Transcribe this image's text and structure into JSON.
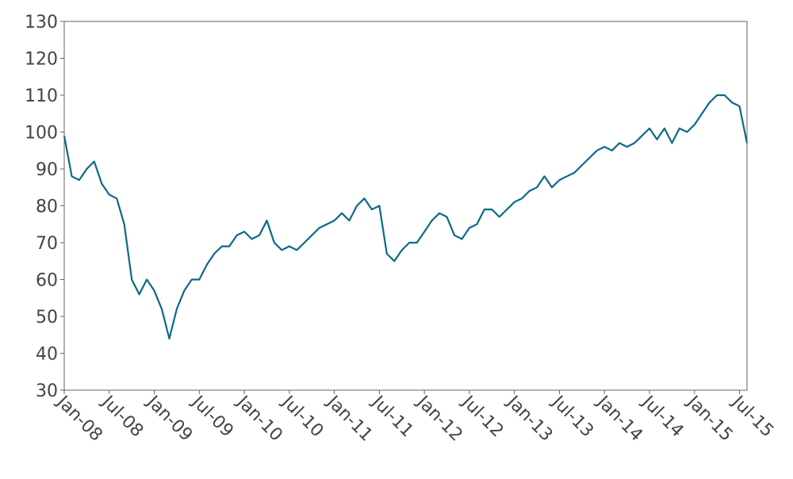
{
  "chart_data": {
    "type": "line",
    "color": "#0b6a86",
    "x": [
      "2008-01",
      "2008-02",
      "2008-03",
      "2008-04",
      "2008-05",
      "2008-06",
      "2008-07",
      "2008-08",
      "2008-09",
      "2008-10",
      "2008-11",
      "2008-12",
      "2009-01",
      "2009-02",
      "2009-03",
      "2009-04",
      "2009-05",
      "2009-06",
      "2009-07",
      "2009-08",
      "2009-09",
      "2009-10",
      "2009-11",
      "2009-12",
      "2010-01",
      "2010-02",
      "2010-03",
      "2010-04",
      "2010-05",
      "2010-06",
      "2010-07",
      "2010-08",
      "2010-09",
      "2010-10",
      "2010-11",
      "2010-12",
      "2011-01",
      "2011-02",
      "2011-03",
      "2011-04",
      "2011-05",
      "2011-06",
      "2011-07",
      "2011-08",
      "2011-09",
      "2011-10",
      "2011-11",
      "2011-12",
      "2012-01",
      "2012-02",
      "2012-03",
      "2012-04",
      "2012-05",
      "2012-06",
      "2012-07",
      "2012-08",
      "2012-09",
      "2012-10",
      "2012-11",
      "2012-12",
      "2013-01",
      "2013-02",
      "2013-03",
      "2013-04",
      "2013-05",
      "2013-06",
      "2013-07",
      "2013-08",
      "2013-09",
      "2013-10",
      "2013-11",
      "2013-12",
      "2014-01",
      "2014-02",
      "2014-03",
      "2014-04",
      "2014-05",
      "2014-06",
      "2014-07",
      "2014-08",
      "2014-09",
      "2014-10",
      "2014-11",
      "2014-12",
      "2015-01",
      "2015-02",
      "2015-03",
      "2015-04",
      "2015-05",
      "2015-06",
      "2015-07",
      "2015-08"
    ],
    "values": [
      99,
      88,
      87,
      90,
      92,
      86,
      83,
      82,
      75,
      60,
      56,
      60,
      57,
      52,
      44,
      52,
      57,
      60,
      60,
      64,
      67,
      69,
      69,
      72,
      73,
      71,
      72,
      76,
      70,
      68,
      69,
      68,
      70,
      72,
      74,
      75,
      76,
      78,
      76,
      80,
      82,
      79,
      80,
      67,
      65,
      68,
      70,
      70,
      73,
      76,
      78,
      77,
      72,
      71,
      74,
      75,
      79,
      79,
      77,
      79,
      81,
      82,
      84,
      85,
      88,
      85,
      87,
      88,
      89,
      91,
      93,
      95,
      96,
      95,
      97,
      96,
      97,
      99,
      101,
      98,
      101,
      97,
      101,
      100,
      102,
      105,
      108,
      110,
      110,
      108,
      107,
      97
    ],
    "xlim": [
      "2008-01",
      "2015-08"
    ],
    "xticks": [
      {
        "value": "2008-01",
        "label": "Jan-08"
      },
      {
        "value": "2008-07",
        "label": "Jul-08"
      },
      {
        "value": "2009-01",
        "label": "Jan-09"
      },
      {
        "value": "2009-07",
        "label": "Jul-09"
      },
      {
        "value": "2010-01",
        "label": "Jan-10"
      },
      {
        "value": "2010-07",
        "label": "Jul-10"
      },
      {
        "value": "2011-01",
        "label": "Jan-11"
      },
      {
        "value": "2011-07",
        "label": "Jul-11"
      },
      {
        "value": "2012-01",
        "label": "Jan-12"
      },
      {
        "value": "2012-07",
        "label": "Jul-12"
      },
      {
        "value": "2013-01",
        "label": "Jan-13"
      },
      {
        "value": "2013-07",
        "label": "Jul-13"
      },
      {
        "value": "2014-01",
        "label": "Jan-14"
      },
      {
        "value": "2014-07",
        "label": "Jul-14"
      },
      {
        "value": "2015-01",
        "label": "Jan-15"
      },
      {
        "value": "2015-07",
        "label": "Jul-15"
      }
    ],
    "ylim": [
      30,
      130
    ],
    "yticks": [
      30,
      40,
      50,
      60,
      70,
      80,
      90,
      100,
      110,
      120,
      130
    ]
  }
}
